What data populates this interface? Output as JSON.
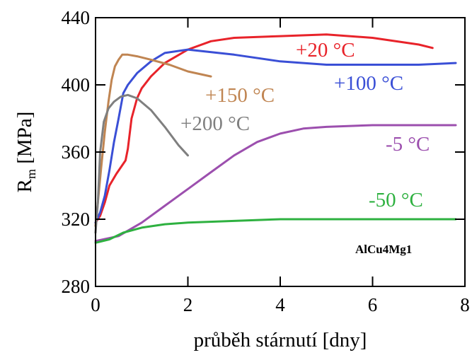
{
  "chart_data": {
    "type": "line",
    "xlabel": "průběh stárnutí [dny]",
    "ylabel_main": "R",
    "ylabel_sub": "m",
    "ylabel_unit": " [MPa]",
    "xlim": [
      0,
      8
    ],
    "ylim": [
      280,
      440
    ],
    "xticks": [
      0,
      2,
      4,
      6,
      8
    ],
    "yticks": [
      280,
      320,
      360,
      400,
      440
    ],
    "grid": false,
    "annotation": "AlCu4Mg1",
    "series": [
      {
        "name": "+20 °C",
        "color": "#e8232a",
        "x": [
          0,
          0.1,
          0.2,
          0.3,
          0.45,
          0.55,
          0.65,
          0.7,
          0.78,
          0.9,
          1.0,
          1.2,
          1.5,
          2.0,
          2.5,
          3.0,
          4.0,
          5.0,
          6.0,
          7.0,
          7.3
        ],
        "y": [
          318,
          322,
          330,
          340,
          347,
          351,
          355,
          362,
          380,
          392,
          398,
          405,
          413,
          421,
          426,
          428,
          429,
          430,
          428,
          424,
          422
        ]
      },
      {
        "name": "+100 °C",
        "color": "#3a4fd6",
        "x": [
          0,
          0.1,
          0.2,
          0.3,
          0.4,
          0.5,
          0.6,
          0.7,
          0.9,
          1.2,
          1.5,
          2.0,
          3.0,
          4.0,
          5.0,
          6.0,
          7.0,
          7.8
        ],
        "y": [
          318,
          324,
          334,
          349,
          366,
          380,
          395,
          400,
          407,
          414,
          419,
          421,
          418,
          414,
          412,
          412,
          412,
          413
        ]
      },
      {
        "name": "+150 °C",
        "color": "#c08552",
        "x": [
          0,
          0.05,
          0.12,
          0.2,
          0.28,
          0.35,
          0.42,
          0.5,
          0.58,
          0.7,
          0.9,
          1.2,
          1.6,
          2.0,
          2.5
        ],
        "y": [
          316,
          330,
          350,
          372,
          390,
          403,
          411,
          415,
          418,
          418,
          417,
          415,
          412,
          408,
          405
        ]
      },
      {
        "name": "+200 °C",
        "color": "#7f7f7f",
        "x": [
          0,
          0.05,
          0.1,
          0.18,
          0.28,
          0.4,
          0.55,
          0.7,
          0.9,
          1.2,
          1.5,
          1.8,
          2.0
        ],
        "y": [
          312,
          330,
          360,
          378,
          386,
          390,
          393,
          394,
          392,
          385,
          375,
          364,
          358
        ]
      },
      {
        "name": "-5 °C",
        "color": "#9c4fae",
        "x": [
          0,
          0.5,
          1.0,
          1.5,
          2.0,
          2.5,
          3.0,
          3.5,
          4.0,
          4.5,
          5.0,
          6.0,
          7.0,
          7.8
        ],
        "y": [
          307,
          310,
          318,
          328,
          338,
          348,
          358,
          366,
          371,
          374,
          375,
          376,
          376,
          376
        ]
      },
      {
        "name": "-50 °C",
        "color": "#2eb140",
        "x": [
          0,
          0.3,
          0.6,
          1.0,
          1.5,
          2.0,
          3.0,
          4.0,
          5.0,
          6.0,
          7.0,
          7.8
        ],
        "y": [
          306,
          308,
          312,
          315,
          317,
          318,
          319,
          320,
          320,
          320,
          320,
          320
        ]
      }
    ]
  }
}
